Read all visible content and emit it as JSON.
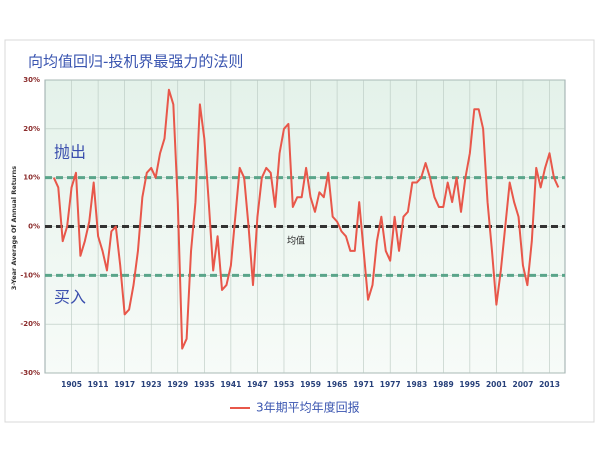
{
  "chart_data": {
    "type": "line",
    "title": "向均值回归-投机界最强力的法则",
    "y_label": "3-Year Average Of Annual Returns",
    "annotations": [
      "抛出",
      "买入",
      "均值"
    ],
    "x": [
      1901,
      1902,
      1903,
      1904,
      1905,
      1906,
      1907,
      1908,
      1909,
      1910,
      1911,
      1912,
      1913,
      1914,
      1915,
      1916,
      1917,
      1918,
      1919,
      1920,
      1921,
      1922,
      1923,
      1924,
      1925,
      1926,
      1927,
      1928,
      1929,
      1930,
      1931,
      1932,
      1933,
      1934,
      1935,
      1936,
      1937,
      1938,
      1939,
      1940,
      1941,
      1942,
      1943,
      1944,
      1945,
      1946,
      1947,
      1948,
      1949,
      1950,
      1951,
      1952,
      1953,
      1954,
      1955,
      1956,
      1957,
      1958,
      1959,
      1960,
      1961,
      1962,
      1963,
      1964,
      1965,
      1966,
      1967,
      1968,
      1969,
      1970,
      1971,
      1972,
      1973,
      1974,
      1975,
      1976,
      1977,
      1978,
      1979,
      1980,
      1981,
      1982,
      1983,
      1984,
      1985,
      1986,
      1987,
      1988,
      1989,
      1990,
      1991,
      1992,
      1993,
      1994,
      1995,
      1996,
      1997,
      1998,
      1999,
      2000,
      2001,
      2002,
      2003,
      2004,
      2005,
      2006,
      2007,
      2008,
      2009,
      2010,
      2011,
      2012,
      2013,
      2014,
      2015
    ],
    "series": [
      {
        "name": "3年期平均年度回报",
        "color": "#e8574a",
        "values": [
          10,
          8,
          -3,
          0,
          8,
          11,
          -6,
          -3,
          1,
          9,
          -2,
          -5,
          -9,
          -1,
          0,
          -8,
          -18,
          -17,
          -12,
          -5,
          6,
          11,
          12,
          10,
          15,
          18,
          28,
          25,
          5,
          -25,
          -23,
          -5,
          5,
          25,
          18,
          5,
          -9,
          -2,
          -13,
          -12,
          -8,
          2,
          12,
          10,
          0,
          -12,
          2,
          10,
          12,
          11,
          4,
          15,
          20,
          21,
          4,
          6,
          6,
          12,
          6,
          3,
          7,
          6,
          11,
          2,
          1,
          -1,
          -2,
          -5,
          -5,
          5,
          -5,
          -15,
          -12,
          -3,
          2,
          -5,
          -7,
          2,
          -5,
          2,
          3,
          9,
          9,
          10,
          13,
          10,
          6,
          4,
          4,
          9,
          5,
          10,
          3,
          10,
          15,
          24,
          24,
          20,
          5,
          -5,
          -16,
          -9,
          0,
          9,
          5,
          2,
          -8,
          -12,
          -3,
          12,
          8,
          12,
          15,
          10,
          8
        ]
      }
    ],
    "reference_lines": [
      {
        "value": 10,
        "color": "#5aa58a"
      },
      {
        "value": 0,
        "color": "#333333"
      },
      {
        "value": -10,
        "color": "#5aa58a"
      }
    ],
    "xlim": [
      1899,
      2016.5
    ],
    "ylim": [
      -30,
      30
    ],
    "xticks": [
      1905,
      1911,
      1917,
      1923,
      1929,
      1935,
      1941,
      1947,
      1953,
      1959,
      1965,
      1971,
      1977,
      1983,
      1989,
      1995,
      2001,
      2007,
      2013
    ],
    "yticks": [
      {
        "value": -30,
        "label": "-30%"
      },
      {
        "value": -20,
        "label": "-20%"
      },
      {
        "value": -10,
        "label": "-10%"
      },
      {
        "value": 0,
        "label": "0%"
      },
      {
        "value": 10,
        "label": "10%"
      },
      {
        "value": 20,
        "label": "20%"
      },
      {
        "value": 30,
        "label": "30%"
      }
    ],
    "grid": true
  }
}
